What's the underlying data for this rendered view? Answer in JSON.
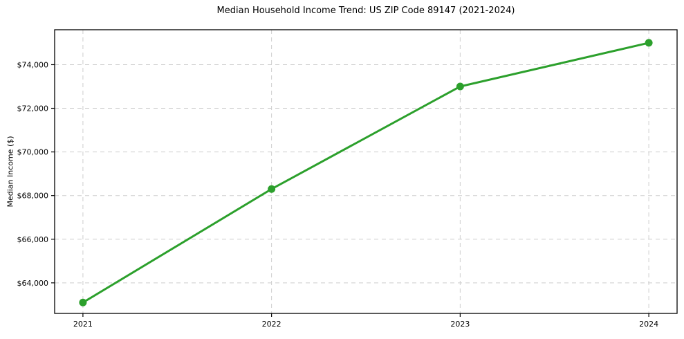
{
  "chart_data": {
    "type": "line",
    "title": "Median Household Income Trend: US ZIP Code 89147 (2021-2024)",
    "xlabel": "",
    "ylabel": "Median Income ($)",
    "x": [
      2021,
      2022,
      2023,
      2024
    ],
    "values": [
      63100,
      68300,
      73000,
      75000
    ],
    "xticks": [
      2021,
      2022,
      2023,
      2024
    ],
    "xtick_labels": [
      "2021",
      "2022",
      "2023",
      "2024"
    ],
    "yticks": [
      64000,
      66000,
      68000,
      70000,
      72000,
      74000
    ],
    "ytick_labels": [
      "$64,000",
      "$66,000",
      "$68,000",
      "$70,000",
      "$72,000",
      "$74,000"
    ],
    "xlim": [
      2020.85,
      2024.15
    ],
    "ylim": [
      62600,
      75600
    ],
    "grid": true,
    "grid_line_style": "dashed",
    "legend_position": "none",
    "marker": "circle",
    "colors": {
      "line": "#2ca02c",
      "marker": "#2ca02c",
      "grid": "#cdcdcd",
      "axis": "#000000",
      "text": "#000000",
      "background": "#ffffff"
    }
  }
}
